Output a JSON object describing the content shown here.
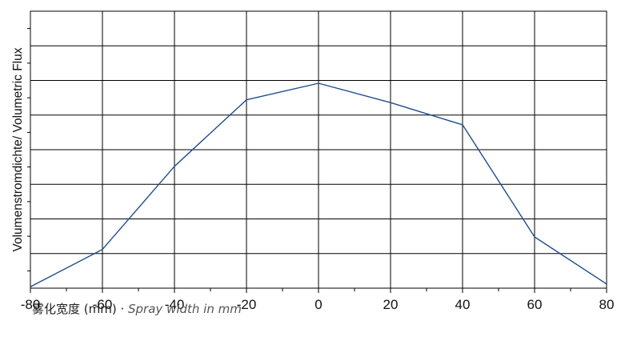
{
  "chart_data": {
    "type": "line",
    "title": "",
    "ylabel": "Volumenstromdichte/ Volumetric Flux",
    "xlabel_cn": "雾化宽度 (mm)",
    "xlabel_sep": " · ",
    "xlabel_en": "Spray width in mm",
    "xlim": [
      -80,
      80
    ],
    "ylim": [
      0,
      100
    ],
    "x_ticks": [
      -80,
      -60,
      -40,
      -20,
      0,
      20,
      40,
      60,
      80
    ],
    "y_gridlines": 7,
    "grid": true,
    "series": [
      {
        "x": [
          -80,
          -60,
          -40,
          -20,
          0,
          20,
          40,
          60,
          80
        ],
        "y": [
          0.5,
          14,
          44,
          68,
          74,
          67,
          59,
          18.5,
          1.5
        ],
        "color": "#1f4e8c"
      }
    ]
  }
}
